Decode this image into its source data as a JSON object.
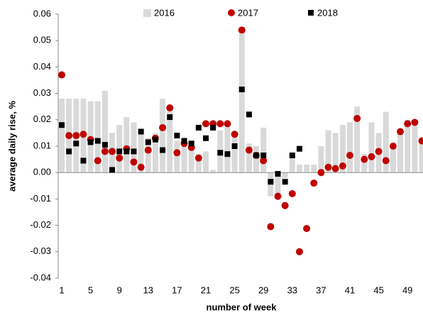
{
  "chart_data": {
    "type": "bar-scatter",
    "x_label": "number of week",
    "y_label": "average daily rise, %",
    "categories": [
      "1",
      null,
      null,
      null,
      "5",
      null,
      null,
      null,
      "9",
      null,
      null,
      null,
      "13",
      null,
      null,
      null,
      "17",
      null,
      null,
      null,
      "21",
      null,
      null,
      null,
      "25",
      null,
      null,
      null,
      "29",
      null,
      null,
      null,
      "33",
      null,
      null,
      null,
      "37",
      null,
      null,
      null,
      "41",
      null,
      null,
      null,
      "45",
      null,
      null,
      null,
      "49",
      null,
      null
    ],
    "series": [
      {
        "name": "2016",
        "kind": "bar",
        "color": "#d9d9d9",
        "values": [
          0.028,
          0.028,
          0.028,
          0.028,
          0.027,
          0.027,
          0.031,
          0.015,
          0.018,
          0.021,
          0.019,
          0.016,
          0.013,
          0.015,
          0.028,
          0.025,
          0.012,
          0.01,
          0.011,
          0.007,
          0.008,
          0.001,
          0.016,
          0.018,
          0.014,
          0.054,
          0.011,
          0.01,
          0.017,
          -0.009,
          -0.01,
          -0.002,
          0.006,
          0.003,
          0.003,
          0.003,
          0.01,
          0.016,
          0.015,
          0.018,
          0.019,
          0.025,
          0.007,
          0.019,
          0.015,
          0.023,
          0.01,
          0.016,
          0.02,
          0.02,
          0.012
        ]
      },
      {
        "name": "2017",
        "kind": "circle",
        "color": "#c00000",
        "values": [
          0.037,
          0.014,
          0.014,
          0.0145,
          0.0125,
          0.0045,
          0.008,
          0.008,
          0.0055,
          0.009,
          0.004,
          0.002,
          0.0085,
          0.013,
          0.017,
          0.0245,
          0.0075,
          0.011,
          0.0095,
          0.0055,
          0.0185,
          0.0185,
          0.0185,
          0.0185,
          0.0145,
          0.054,
          0.0085,
          0.0065,
          0.0045,
          -0.0205,
          -0.009,
          -0.0125,
          -0.008,
          -0.03,
          -0.0212,
          -0.004,
          0.0,
          0.002,
          0.0015,
          0.0025,
          0.0065,
          0.0205,
          0.005,
          0.006,
          0.008,
          0.0045,
          0.01,
          0.0155,
          0.0185,
          0.019,
          0.012
        ]
      },
      {
        "name": "2018",
        "kind": "square",
        "color": "#000000",
        "values": [
          0.018,
          0.008,
          0.011,
          0.0045,
          0.0115,
          0.012,
          0.0105,
          0.001,
          0.008,
          0.008,
          0.008,
          0.0155,
          0.0115,
          0.0125,
          0.0085,
          0.021,
          0.014,
          0.012,
          0.011,
          0.017,
          0.013,
          0.017,
          0.0075,
          0.007,
          0.01,
          0.0315,
          0.022,
          0.0065,
          0.0065,
          -0.0035,
          -0.0005,
          -0.0035,
          0.0065,
          0.009,
          null,
          null,
          null,
          null,
          null,
          null,
          null,
          null,
          null,
          null,
          null,
          null,
          null,
          null,
          null,
          null,
          null
        ]
      }
    ],
    "ylim": [
      -0.04,
      0.06
    ],
    "yticks": [
      -0.04,
      -0.03,
      -0.02,
      -0.01,
      {
        "value": 0,
        "label": "0.00"
      },
      0.01,
      0.02,
      0.03,
      0.04,
      0.05,
      0.06
    ],
    "legend": "top"
  }
}
